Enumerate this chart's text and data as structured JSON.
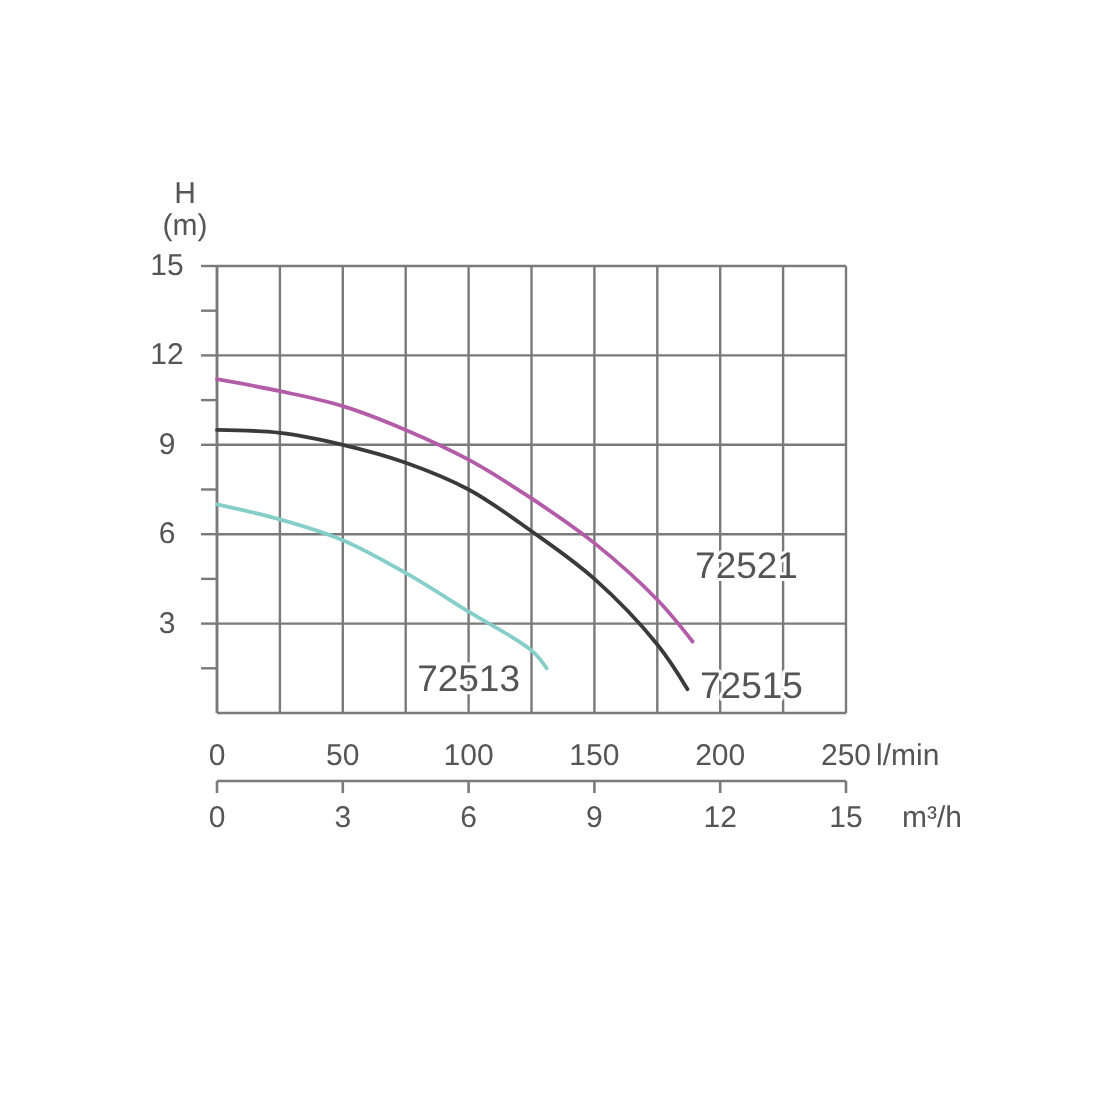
{
  "chart_data": {
    "type": "line",
    "ylabel": "H (m)",
    "xlabel": "l/min",
    "x2label": "m³/h",
    "xlim": [
      0,
      250
    ],
    "xticks": [
      0,
      {
        "value": 25,
        "label": null
      },
      50,
      {
        "value": 75,
        "label": null
      },
      100,
      {
        "value": 125,
        "label": null
      },
      150,
      {
        "value": 175,
        "label": null
      },
      200,
      {
        "value": 225,
        "label": null
      },
      250
    ],
    "x2lim": [
      0,
      15
    ],
    "x2ticks": [
      0,
      3,
      6,
      9,
      12,
      15
    ],
    "ylim": [
      0,
      15
    ],
    "yticks": [
      {
        "value": 1.5,
        "label": null
      },
      3,
      {
        "value": 4.5,
        "label": null
      },
      6,
      {
        "value": 7.5,
        "label": null
      },
      9,
      {
        "value": 10.5,
        "label": null
      },
      12,
      {
        "value": 13.5,
        "label": null
      },
      15
    ],
    "grid": true,
    "series": [
      {
        "name": "72521",
        "color": "#b35ca8",
        "x": [
          0,
          25,
          50,
          75,
          100,
          125,
          150,
          175,
          189
        ],
        "values": [
          11.2,
          10.8,
          10.3,
          9.5,
          8.5,
          7.2,
          5.7,
          3.8,
          2.4
        ]
      },
      {
        "name": "72515",
        "color": "#3a3a3a",
        "x": [
          0,
          25,
          50,
          75,
          100,
          125,
          150,
          175,
          187
        ],
        "values": [
          9.5,
          9.4,
          9.0,
          8.4,
          7.5,
          6.1,
          4.5,
          2.3,
          0.8
        ]
      },
      {
        "name": "72513",
        "color": "#86cfc9",
        "x": [
          0,
          25,
          50,
          75,
          100,
          125,
          131
        ],
        "values": [
          7.0,
          6.5,
          5.8,
          4.7,
          3.4,
          2.1,
          1.5
        ]
      }
    ]
  }
}
